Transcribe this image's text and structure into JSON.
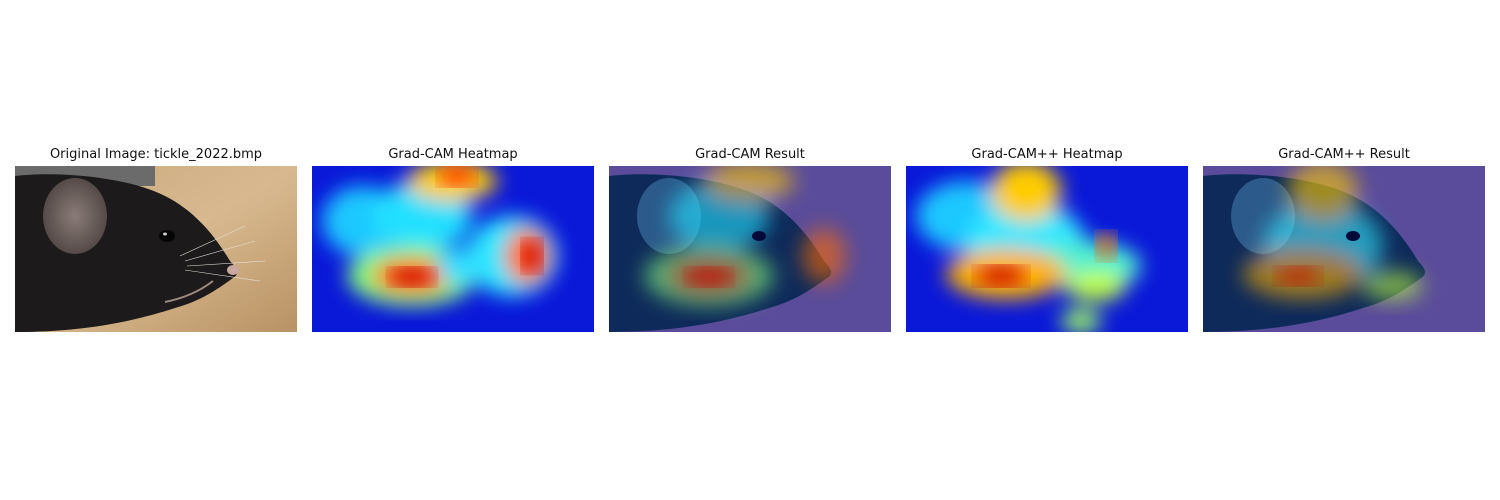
{
  "panels": [
    {
      "title": "Original Image: tickle_2022.bmp",
      "kind": "original"
    },
    {
      "title": "Grad-CAM Heatmap",
      "kind": "heatmap"
    },
    {
      "title": "Grad-CAM Result",
      "kind": "overlay"
    },
    {
      "title": "Grad-CAM++ Heatmap",
      "kind": "heatmap"
    },
    {
      "title": "Grad-CAM++ Result",
      "kind": "overlay"
    }
  ]
}
